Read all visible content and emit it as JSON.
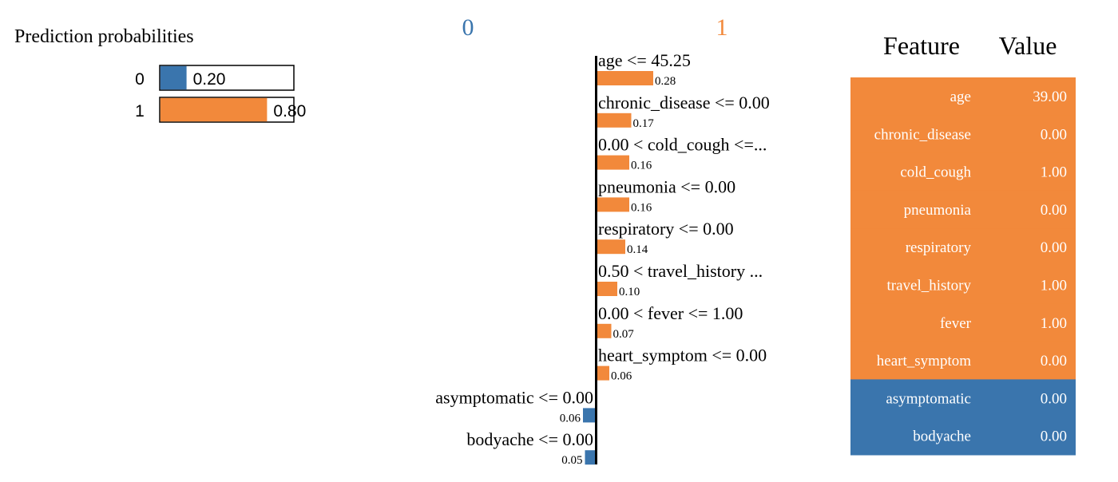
{
  "colors": {
    "class_0": "#3a75ad",
    "class_1": "#f2893b",
    "axis": "#000000",
    "text": "#000000",
    "table_text": "#ffffff"
  },
  "probabilities": {
    "title": "Prediction probabilities",
    "items": [
      {
        "label": "0",
        "value": 0.2,
        "value_text": "0.20",
        "color_key": "class_0"
      },
      {
        "label": "1",
        "value": 0.8,
        "value_text": "0.80",
        "color_key": "class_1"
      }
    ]
  },
  "chart_data": {
    "type": "bar",
    "orientation": "horizontal",
    "class_labels": [
      "0",
      "1"
    ],
    "categories": [
      "age <= 45.25",
      "chronic_disease <= 0.00",
      "0.00 < cold_cough <=...",
      "pneumonia <= 0.00",
      "respiratory <= 0.00",
      "0.50 < travel_history ...",
      "0.00 < fever <= 1.00",
      "heart_symptom <= 0.00",
      "asymptomatic <= 0.00",
      "bodyache <= 0.00"
    ],
    "values": [
      0.28,
      0.17,
      0.16,
      0.16,
      0.14,
      0.1,
      0.07,
      0.06,
      -0.06,
      -0.05
    ],
    "value_labels": [
      "0.28",
      "0.17",
      "0.16",
      "0.16",
      "0.14",
      "0.10",
      "0.07",
      "0.06",
      "0.06",
      "0.05"
    ]
  },
  "feature_table": {
    "headers": [
      "Feature",
      "Value"
    ],
    "rows": [
      {
        "feature": "age",
        "value": "39.00",
        "class": 1
      },
      {
        "feature": "chronic_disease",
        "value": "0.00",
        "class": 1
      },
      {
        "feature": "cold_cough",
        "value": "1.00",
        "class": 1
      },
      {
        "feature": "pneumonia",
        "value": "0.00",
        "class": 1
      },
      {
        "feature": "respiratory",
        "value": "0.00",
        "class": 1
      },
      {
        "feature": "travel_history",
        "value": "1.00",
        "class": 1
      },
      {
        "feature": "fever",
        "value": "1.00",
        "class": 1
      },
      {
        "feature": "heart_symptom",
        "value": "0.00",
        "class": 1
      },
      {
        "feature": "asymptomatic",
        "value": "0.00",
        "class": 0
      },
      {
        "feature": "bodyache",
        "value": "0.00",
        "class": 0
      }
    ]
  }
}
